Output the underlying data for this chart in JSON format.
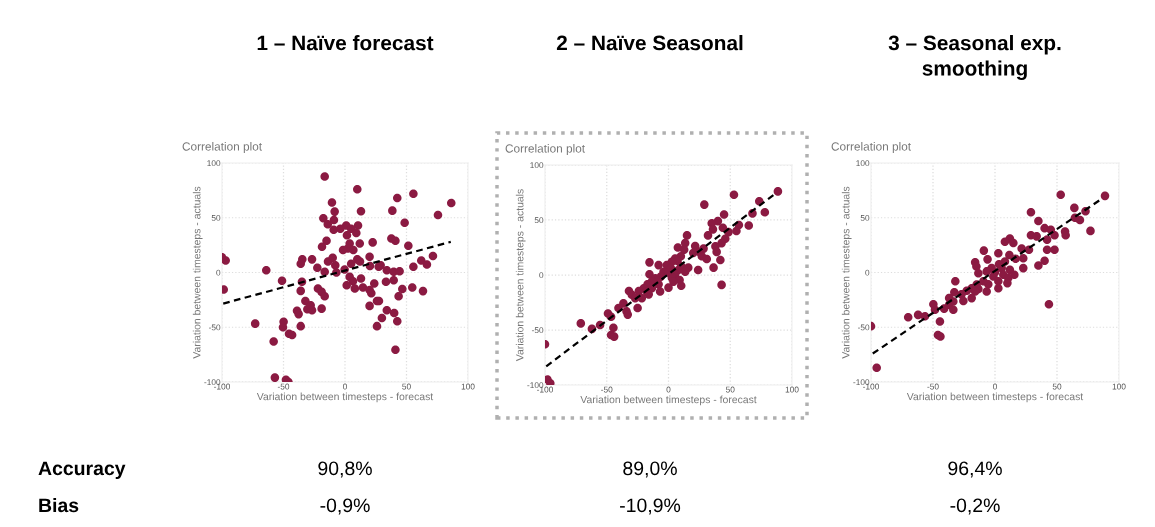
{
  "chart_data": [
    {
      "type": "scatter",
      "title": "1 – Naïve forecast",
      "subtitle": "Correlation plot",
      "xlabel": "Variation between timesteps - forecast",
      "ylabel": "Variation between timesteps - actuals",
      "xlim": [
        -100,
        100
      ],
      "ylim": [
        -100,
        100
      ],
      "xticks": [
        -100,
        -50,
        0,
        50,
        100
      ],
      "yticks": [
        -100,
        -50,
        0,
        50,
        100
      ],
      "grid": true,
      "marker": "circle",
      "annotations": [
        "Accuracy",
        "Bias",
        "90,8%",
        "-0,9%"
      ],
      "series": [
        {
          "color": "#8b1a42",
          "x": [
            -16.5,
            10,
            55.6,
            42.5,
            86.4,
            -10.6,
            38.5,
            13,
            75.6,
            -17.6,
            -8.4,
            -9,
            -14,
            48.5,
            10.6,
            1,
            -3.8,
            -9.2,
            5,
            9.2,
            1.6,
            37.7,
            41,
            -15,
            22.5,
            12,
            3.8,
            51.5,
            -18.7,
            2.4,
            -1.6,
            6.8,
            20,
            71.5,
            62,
            66.6,
            55.6,
            -97,
            -100,
            -34.7,
            -26.8,
            -36,
            -13.8,
            -10,
            10,
            12.2,
            5,
            -7.9,
            -22.5,
            -64,
            -0.3,
            29,
            27.4,
            20.3,
            34,
            39.6,
            44.4,
            -7,
            -16.5,
            3.8,
            6.5,
            13,
            23.8,
            33.3,
            39.6,
            -35,
            -51.2,
            -98.6,
            -36,
            -22,
            -19,
            -16.5,
            1.4,
            8,
            14.6,
            20,
            21.4,
            46.6,
            54.7,
            63.4,
            43.6,
            -32.2,
            26,
            27.6,
            20,
            -27.9,
            -30.6,
            -26.8,
            -39,
            -37.7,
            -19,
            34,
            30,
            40,
            -73,
            -49.9,
            -50.4,
            -36,
            26,
            42.5,
            -45.5,
            -43,
            -58,
            41,
            -57,
            -48,
            -46
          ],
          "values": [
            87.6,
            76,
            72,
            68,
            63.5,
            64,
            56.5,
            56,
            52.5,
            49.5,
            55.6,
            48,
            44,
            45.5,
            43,
            43,
            40,
            39,
            40,
            36,
            34,
            31,
            29,
            29,
            27.5,
            26.5,
            26.5,
            24.4,
            23.5,
            22,
            20.5,
            20.5,
            14.4,
            15,
            11,
            7.3,
            5.2,
            11,
            14,
            12,
            12,
            8,
            10,
            13.4,
            12,
            10,
            8,
            6.7,
            4.3,
            2,
            2.7,
            6.7,
            5.2,
            6,
            2,
            0.6,
            1.2,
            0,
            0.6,
            -4,
            -8,
            -5.5,
            -10,
            -8.5,
            -7,
            -8.5,
            -7.6,
            -15.6,
            -16.8,
            -14.6,
            -17.7,
            -21.7,
            -11.6,
            -14.6,
            -13.7,
            -16,
            -19,
            -15,
            -13.7,
            -17,
            -21.7,
            -26,
            -26,
            -26,
            -30.5,
            -30,
            -33.6,
            -34.5,
            -35,
            -38,
            -33,
            -34.5,
            -41.5,
            -37,
            -46.7,
            -45,
            -50,
            -49,
            -49,
            -44.6,
            -56,
            -57,
            -63,
            -70.5,
            -96,
            -98,
            -100
          ]
        },
        {
          "type": "line",
          "color": "#000000",
          "line_style": "dashed",
          "marker": "none",
          "x": [
            -99,
            86
          ],
          "values": [
            -28.4,
            28
          ]
        }
      ]
    },
    {
      "type": "scatter",
      "title": "2 – Naïve Seasonal",
      "subtitle": "Correlation plot",
      "xlabel": "Variation between timesteps - forecast",
      "ylabel": "Variation between timesteps - actuals",
      "xlim": [
        -100,
        100
      ],
      "ylim": [
        -100,
        100
      ],
      "xticks": [
        -100,
        -50,
        0,
        50,
        100
      ],
      "yticks": [
        -100,
        -50,
        0,
        50,
        100
      ],
      "grid": true,
      "marker": "circle",
      "annotations": [
        "89,0%",
        "-10,9%"
      ],
      "series": [
        {
          "color": "#8b1a42",
          "x": [
            88.6,
            53,
            29,
            73.5,
            78,
            68,
            45,
            40,
            35,
            65,
            57,
            55,
            44,
            48.6,
            36,
            32,
            15,
            46,
            43,
            38,
            13.5,
            21.6,
            7.6,
            12.7,
            28.4,
            25,
            20,
            39,
            27,
            31,
            42,
            10,
            5.4,
            7.3,
            2.7,
            -15.4,
            -8,
            -1.4,
            10.3,
            16,
            36.5,
            24,
            2,
            8,
            -4,
            0,
            5.4,
            13.5,
            -15.4,
            -6.2,
            2.7,
            -10.8,
            9,
            -13.5,
            4,
            43,
            -17,
            -8,
            10.3,
            0,
            -20,
            -13.5,
            -6.8,
            -32,
            -24,
            -17.6,
            -29.7,
            -16,
            -21.6,
            -27,
            -36.5,
            -25,
            -40.5,
            -34,
            -49,
            -46.5,
            -33,
            -71,
            -55.4,
            -62,
            -44.6,
            -46.5,
            -44,
            -100,
            -98,
            -95.7
          ],
          "values": [
            76,
            73,
            64,
            67,
            57,
            56,
            55,
            49,
            47,
            45,
            45.5,
            40,
            43,
            39,
            41.5,
            36,
            36,
            33,
            29,
            26,
            29,
            26.4,
            25,
            23,
            24,
            21,
            20,
            21,
            17,
            14.5,
            13.6,
            17,
            15,
            12.7,
            12,
            11.5,
            9,
            9,
            8,
            6.7,
            6.7,
            4.5,
            6,
            4.5,
            3,
            2.4,
            0.6,
            3,
            0.6,
            -1.5,
            -2.4,
            -3,
            -4.5,
            -6,
            -6,
            -9,
            -8.5,
            -8.5,
            -9.7,
            -11.5,
            -12,
            -12,
            -15,
            -14.5,
            -14.5,
            -15,
            -18,
            -17.6,
            -21,
            -21,
            -25.8,
            -30,
            -30,
            -33,
            -35,
            -38,
            -36,
            -44,
            -45.5,
            -49,
            -48,
            -54.5,
            -56,
            -63,
            -95,
            -98.5
          ]
        },
        {
          "type": "line",
          "color": "#000000",
          "line_style": "dashed",
          "marker": "none",
          "x": [
            -99,
            86.5
          ],
          "values": [
            -83,
            74
          ]
        }
      ]
    },
    {
      "type": "scatter",
      "title": "3 – Seasonal exp.\nsmoothing",
      "subtitle": "Correlation plot",
      "xlabel": "Variation between timesteps - forecast",
      "ylabel": "Variation between timesteps - actuals",
      "xlim": [
        -100,
        100
      ],
      "ylim": [
        -100,
        100
      ],
      "xticks": [
        -100,
        -50,
        0,
        50,
        100
      ],
      "yticks": [
        -100,
        -50,
        0,
        50,
        100
      ],
      "grid": true,
      "marker": "circle",
      "annotations": [
        "96,4%",
        "-0,2%"
      ],
      "series": [
        {
          "color": "#8b1a42",
          "x": [
            88.7,
            53,
            64,
            73,
            29,
            64.5,
            68.5,
            77,
            35,
            56.5,
            57,
            48,
            40,
            45,
            29,
            33.6,
            42,
            12,
            14.8,
            8,
            21.5,
            27.4,
            42,
            48,
            -9,
            2.7,
            11.6,
            22.8,
            40,
            -6,
            -16,
            16.7,
            8,
            3.2,
            35,
            22.8,
            -15,
            -2.7,
            5.4,
            12,
            15.6,
            -6.7,
            0,
            6.7,
            -13.4,
            -1.3,
            10.7,
            2.7,
            -32,
            -5.4,
            -9.4,
            10,
            -14.8,
            -13.4,
            2.7,
            -6.7,
            -18.8,
            -22.8,
            -27,
            -16,
            -32.8,
            -25.5,
            -18.8,
            -37,
            -33.6,
            -37,
            -33.6,
            -41,
            -49.7,
            -48.4,
            -56.5,
            -62,
            -70,
            -44.4,
            43.5,
            -46,
            -44,
            -100,
            -95.4
          ],
          "values": [
            70,
            71,
            59,
            56,
            55,
            50,
            48,
            38,
            47,
            37.5,
            34,
            34,
            40.5,
            39,
            34,
            33,
            30,
            31,
            27,
            28,
            22,
            20.7,
            20.7,
            20.7,
            20,
            17.6,
            16,
            13,
            10.7,
            12,
            9.4,
            12.5,
            10,
            7.6,
            6.4,
            4,
            5.5,
            4,
            4,
            2.4,
            -2,
            1,
            0.3,
            -2,
            -0.6,
            -3.6,
            -5,
            -8,
            -8,
            -10.7,
            -8,
            -9.7,
            -11,
            -15,
            -14.3,
            -17.4,
            -14.3,
            -16.7,
            -20,
            -17.4,
            -18,
            -26,
            -23.4,
            -23.4,
            -26.5,
            -29.5,
            -34,
            -33,
            -29,
            -34,
            -40,
            -38.7,
            -40.8,
            -44.7,
            -29,
            -57,
            -58.5,
            -49,
            -87
          ]
        },
        {
          "type": "line",
          "color": "#000000",
          "line_style": "dashed",
          "marker": "none",
          "x": [
            -98.6,
            87
          ],
          "values": [
            -74,
            68
          ]
        }
      ]
    }
  ]
}
